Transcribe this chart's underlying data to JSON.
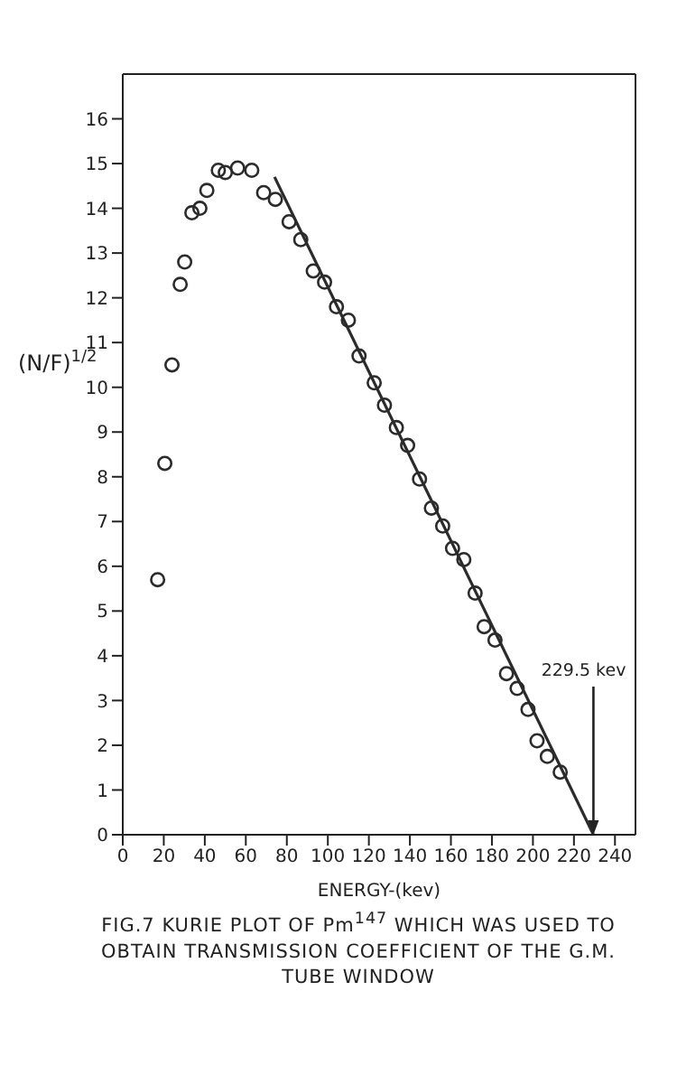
{
  "chart_data": {
    "type": "scatter",
    "title": "FIG.7 KURIE PLOT OF Pm$^{147}$ WHICH WAS USED TO OBTAIN TRANSMISSION COEFFICIENT OF THE G.M. TUBE WINDOW",
    "xlabel": "ENERGY-(kev)",
    "ylabel": "(N/F)$^{1/2}$",
    "xlim": [
      0,
      250
    ],
    "xticks": [
      0,
      20,
      40,
      60,
      80,
      100,
      120,
      140,
      160,
      180,
      200,
      220,
      240
    ],
    "ylim": [
      0,
      17
    ],
    "yticks": [
      0,
      1,
      2,
      3,
      4,
      5,
      6,
      7,
      8,
      9,
      10,
      11,
      12,
      13,
      14,
      15,
      16
    ],
    "annotations": [
      {
        "text": "229.5 kev",
        "x": 229.5,
        "y": 0
      }
    ],
    "series": [
      {
        "marker": "circle",
        "color": "#2b2b2b",
        "x": [
          17,
          20.5,
          24,
          28,
          30.2,
          33.7,
          37.6,
          41,
          46.6,
          50,
          56,
          62.9,
          68.7,
          74.4,
          81.1,
          86.8,
          92.9,
          98.4,
          104.2,
          110,
          115.2,
          122.6,
          127.6,
          133.4,
          138.9,
          144.7,
          150.5,
          156,
          160.8,
          166.3,
          171.8,
          176.2,
          181.5,
          187.1,
          192.3,
          197.6,
          202,
          207,
          213.3
        ],
        "values": [
          5.7,
          8.3,
          10.5,
          12.3,
          12.8,
          13.9,
          14,
          14.4,
          14.85,
          14.8,
          14.9,
          14.85,
          14.35,
          14.2,
          13.7,
          13.3,
          12.6,
          12.35,
          11.8,
          11.5,
          10.7,
          10.1,
          9.6,
          9.1,
          8.7,
          7.95,
          7.3,
          6.9,
          6.4,
          6.15,
          5.4,
          4.65,
          4.35,
          3.6,
          3.27,
          2.8,
          2.1,
          1.75,
          1.4
        ]
      },
      {
        "type": "line",
        "color": "#2b2b2b",
        "x": [
          74,
          229.5
        ],
        "values": [
          14.7,
          0
        ]
      }
    ]
  }
}
